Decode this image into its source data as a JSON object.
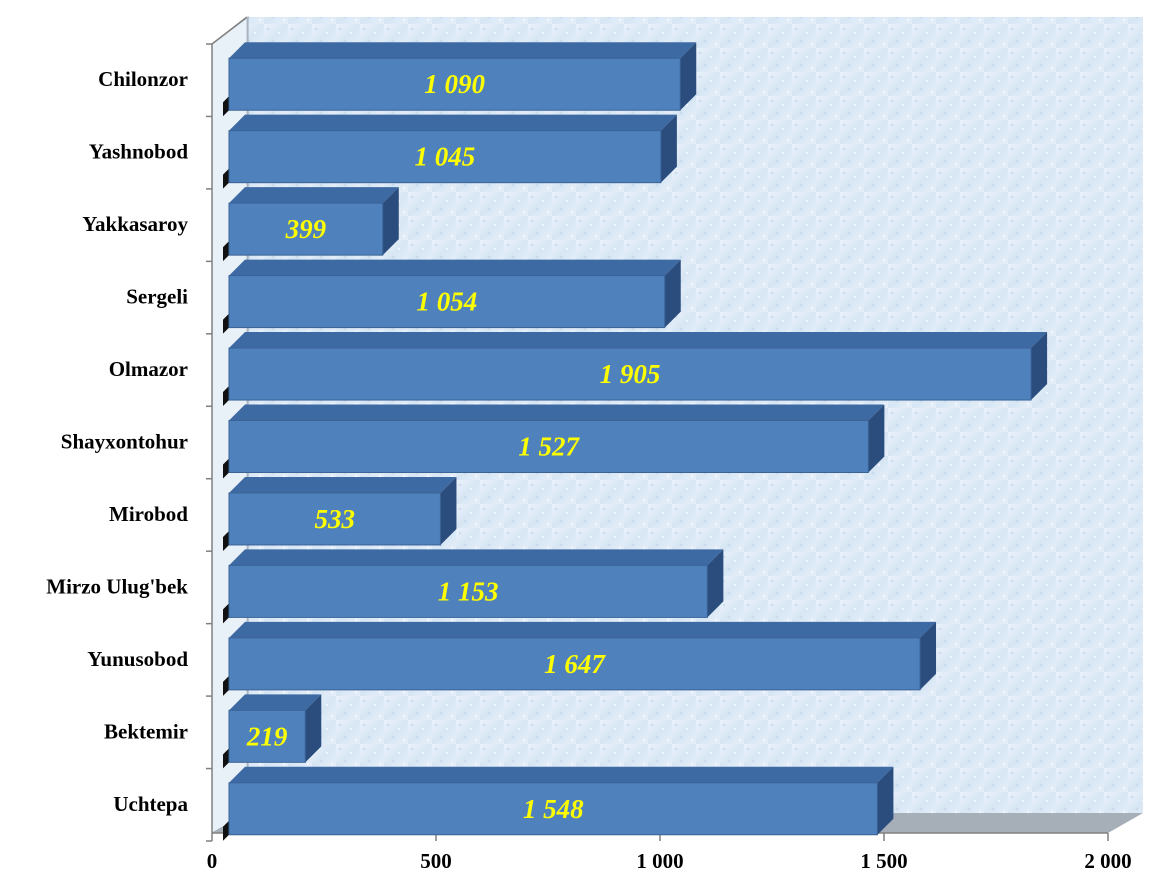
{
  "chart_data": {
    "type": "bar",
    "orientation": "horizontal",
    "three_d": true,
    "categories": [
      "Chilonzor",
      "Yashnobod",
      "Yakkasaroy",
      "Sergeli",
      "Olmazor",
      "Shayxontohur",
      "Mirobod",
      "Mirzo Ulug'bek",
      "Yunusobod",
      "Bektemir",
      "Uchtepa"
    ],
    "values": [
      1090,
      1045,
      399,
      1054,
      1905,
      1527,
      533,
      1153,
      1647,
      219,
      1548
    ],
    "value_labels": [
      "1 090",
      "1 045",
      "399",
      "1 054",
      "1 905",
      "1 527",
      "533",
      "1 153",
      "1 647",
      "219",
      "1 548"
    ],
    "title": "",
    "xlabel": "",
    "ylabel": "",
    "xlim": [
      0,
      2000
    ],
    "x_ticks": [
      0,
      500,
      1000,
      1500,
      2000
    ],
    "x_tick_labels": [
      "0",
      "500",
      "1 000",
      "1 500",
      "2 000"
    ],
    "grid": false,
    "legend": "none",
    "colors": {
      "bar_front": "#4f81bd",
      "bar_top": "#3e6aa3",
      "bar_side": "#2b4d7e",
      "value_label": "#ffff00",
      "wall_background": "#dfeaf6",
      "floor": "#a6aeb8",
      "axis": "#808080"
    }
  }
}
